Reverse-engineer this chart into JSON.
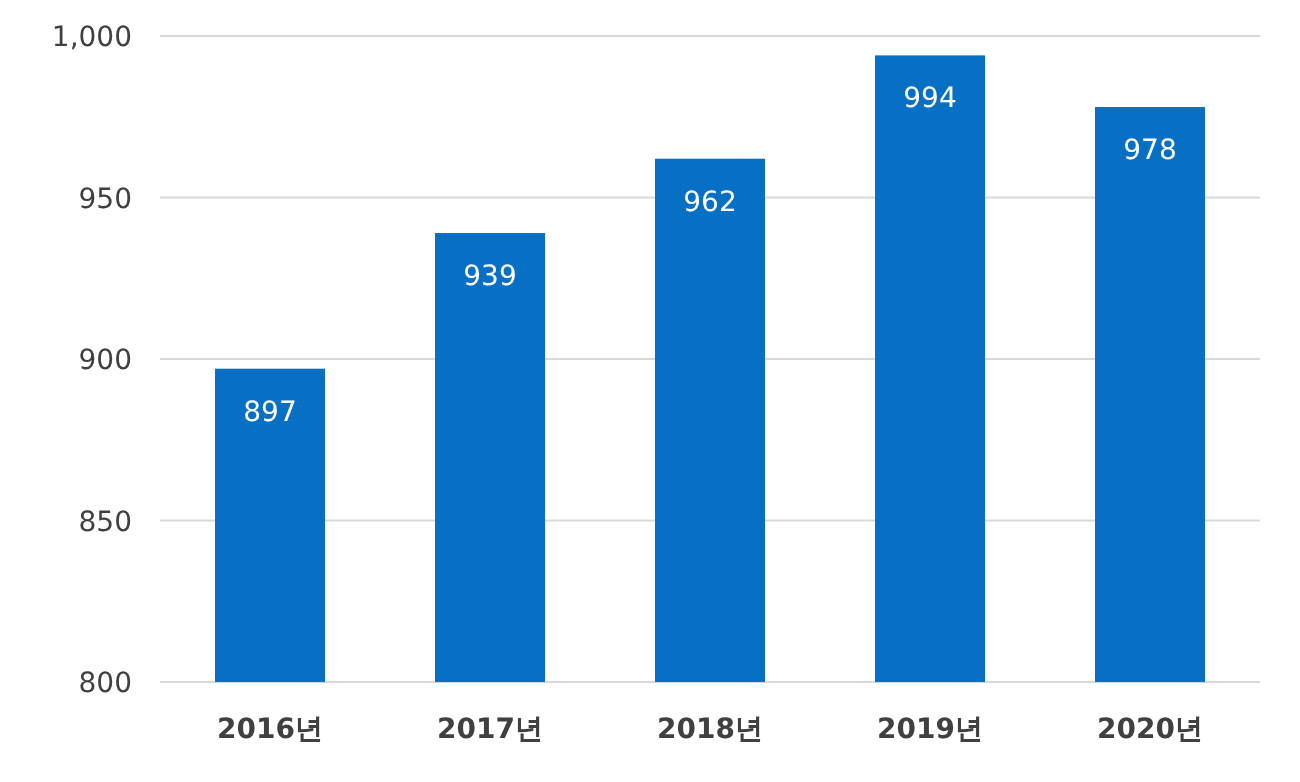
{
  "chart_data": {
    "type": "bar",
    "categories": [
      "2016년",
      "2017년",
      "2018년",
      "2019년",
      "2020년"
    ],
    "values": [
      897,
      939,
      962,
      994,
      978
    ],
    "color": "#0870c4",
    "ylim": [
      800,
      1000
    ],
    "yticks": [
      800,
      850,
      900,
      950,
      {
        "value": 1000,
        "label": "1,000"
      }
    ],
    "grid": "y",
    "data_labels": true
  }
}
